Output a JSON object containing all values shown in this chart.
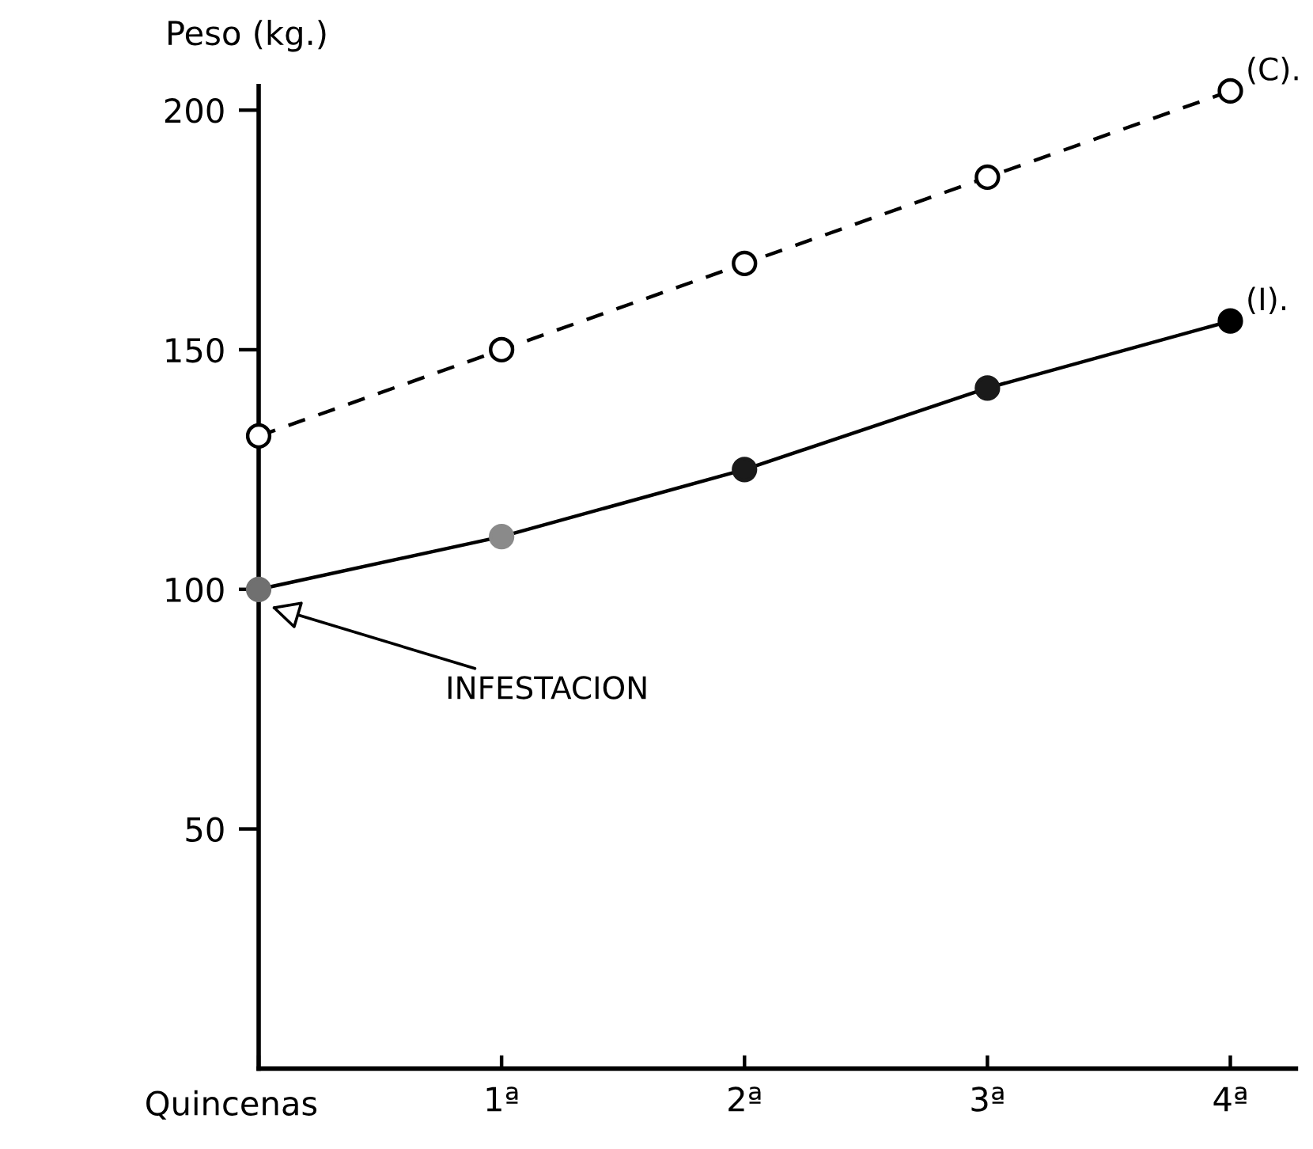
{
  "chart_data": {
    "type": "line",
    "ylabel": "Peso (kg.)",
    "xlabel": "Quincenas",
    "categories": [
      null,
      "1ª",
      "2ª",
      "3ª",
      "4ª"
    ],
    "ylim": [
      0,
      205
    ],
    "yticks": [
      50,
      100,
      150,
      200
    ],
    "grid": false,
    "legend": false,
    "marker": "circle",
    "series": [
      {
        "name": "(C).",
        "color": "#000000",
        "line_style": "dashed",
        "values": [
          132,
          150,
          168,
          186,
          204
        ]
      },
      {
        "name": "(I).",
        "color": "#000000",
        "line_style": "solid",
        "colors": [
          "#707070",
          "#8a8a8a",
          "#1a1a1a",
          "#1a1a1a",
          "#000000"
        ],
        "values": [
          100,
          111,
          125,
          142,
          156
        ]
      }
    ],
    "annotations": [
      "INFESTACION"
    ]
  }
}
